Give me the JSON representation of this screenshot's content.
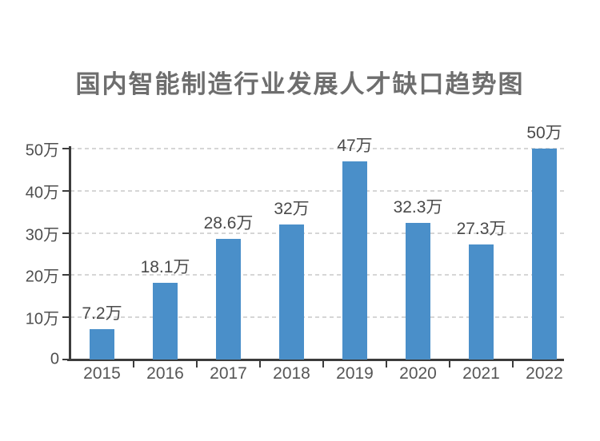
{
  "page": {
    "background_color": "#ffffff"
  },
  "chart_data": {
    "type": "bar",
    "title": "国内智能制造行业发展人才缺口趋势图",
    "categories": [
      "2015",
      "2016",
      "2017",
      "2018",
      "2019",
      "2020",
      "2021",
      "2022"
    ],
    "values": [
      7.2,
      18.1,
      28.6,
      32,
      47,
      32.3,
      27.3,
      50
    ],
    "value_labels": [
      "7.2万",
      "18.1万",
      "28.6万",
      "32万",
      "47万",
      "32.3万",
      "27.3万",
      "50万"
    ],
    "unit": "万",
    "xlabel": "",
    "ylabel": "",
    "ylim": [
      0,
      50
    ],
    "y_ticks": [
      {
        "value": 0,
        "label": "0"
      },
      {
        "value": 10,
        "label": "10万"
      },
      {
        "value": 20,
        "label": "20万"
      },
      {
        "value": 30,
        "label": "30万"
      },
      {
        "value": 40,
        "label": "40万"
      },
      {
        "value": 50,
        "label": "50万"
      }
    ],
    "grid": "horizontal-dashed",
    "legend": "none",
    "colors": {
      "bar": "#4a8fc9",
      "axis": "#3c3c3c",
      "gridline": "#d6d6d6",
      "title_text": "#6e6e6e",
      "value_label_text": "#4a4a4a",
      "tick_label_text": "#565656"
    }
  }
}
